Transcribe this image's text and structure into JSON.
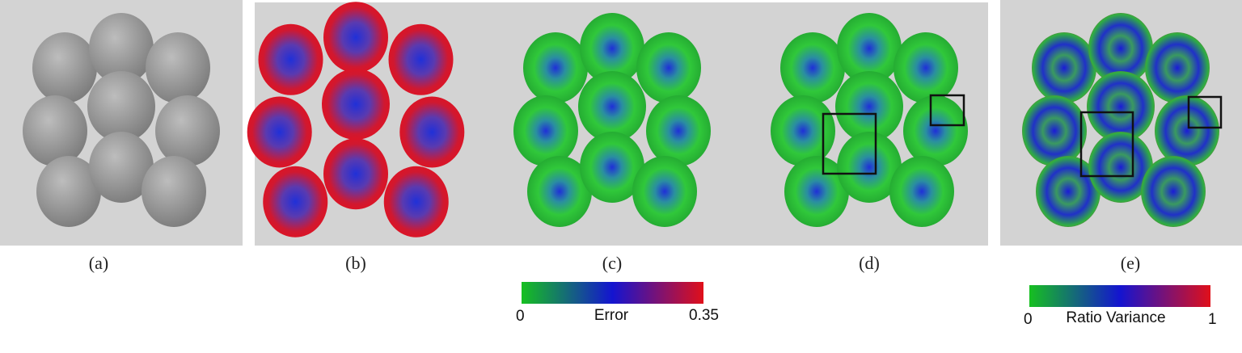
{
  "panels": [
    {
      "label": "(a)"
    },
    {
      "label": "(b)"
    },
    {
      "label": "(c)"
    },
    {
      "label": "(d)"
    },
    {
      "label": "(e)"
    }
  ],
  "colorbars": [
    {
      "min": 0,
      "title": "Error",
      "max": 0.35
    },
    {
      "min": 0,
      "title": "Ratio Variance",
      "max": 1
    }
  ]
}
